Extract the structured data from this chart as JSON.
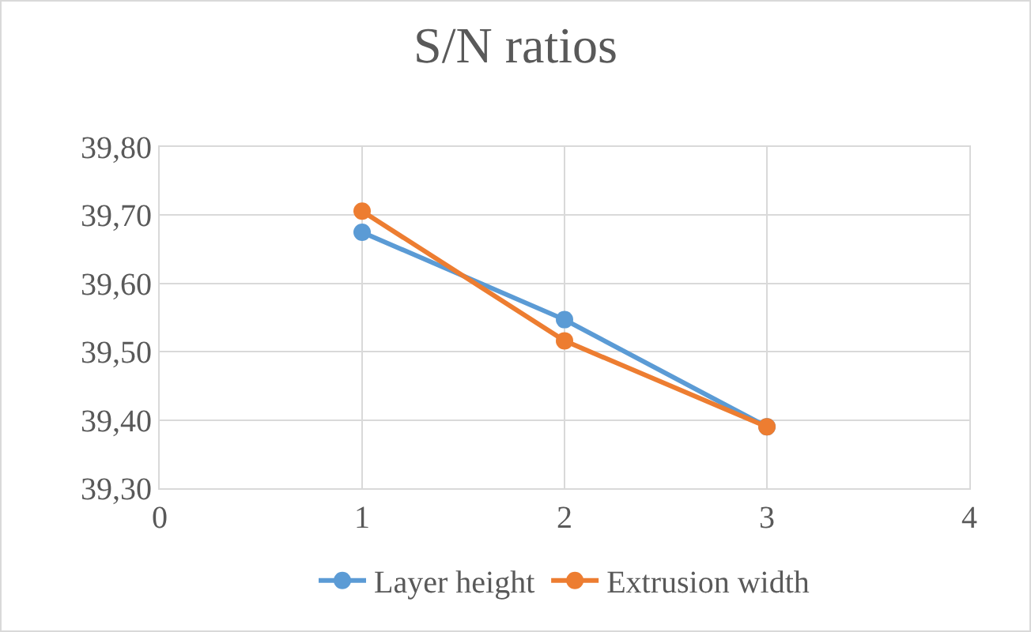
{
  "chart_data": {
    "type": "line",
    "title": "S/N ratios",
    "x": [
      1,
      2,
      3
    ],
    "series": [
      {
        "name": "Layer height",
        "color": "#5b9bd5",
        "values": [
          39.675,
          39.547,
          39.39
        ]
      },
      {
        "name": "Extrusion width",
        "color": "#ed7d31",
        "values": [
          39.706,
          39.516,
          39.39
        ]
      }
    ],
    "xlim": [
      0,
      4
    ],
    "xticks": [
      0,
      1,
      2,
      3,
      4
    ],
    "ylim": [
      39.3,
      39.8
    ],
    "yticks": [
      {
        "value": 39.3,
        "label": "39,30"
      },
      {
        "value": 39.4,
        "label": "39,40"
      },
      {
        "value": 39.5,
        "label": "39,50"
      },
      {
        "value": 39.6,
        "label": "39,60"
      },
      {
        "value": 39.7,
        "label": "39,70"
      },
      {
        "value": 39.8,
        "label": "39,80"
      }
    ],
    "grid": true,
    "legend": "bottom",
    "marker": "circle",
    "line_style": "solid"
  }
}
